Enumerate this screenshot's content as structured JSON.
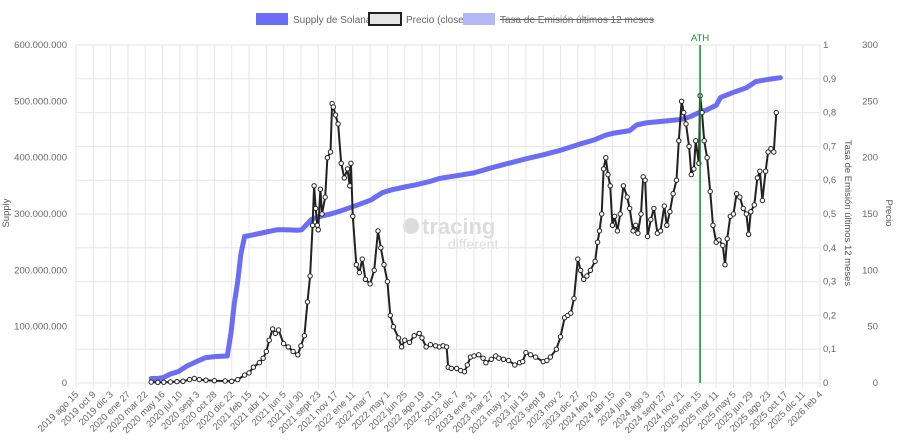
{
  "legend": {
    "supply": "Supply de Solana",
    "precio": "Precio (close)",
    "tasa": "Tasa de Emisión últimos 12 meses"
  },
  "colors": {
    "supply": "#6b6ef5",
    "precio": "#222222",
    "tasa_fill": "#b4b8f7",
    "ath": "#1f8a3a",
    "grid": "#e6e6e6"
  },
  "axes": {
    "left_title": "Supply",
    "right1_title": "Tasa de Emisión últimos 12 meses",
    "right2_title": "Precio"
  },
  "watermark": {
    "line1": "tracing",
    "line2": "different"
  },
  "annotation": {
    "label": "ATH",
    "date": "2025-01-19"
  },
  "chart_data": {
    "type": "line",
    "x_type": "date",
    "xlim": [
      "2019-08-15",
      "2026-02-04"
    ],
    "x_ticks": [
      "2019-08-15",
      "2019-10-09",
      "2019-12-03",
      "2020-01-27",
      "2020-03-22",
      "2020-05-16",
      "2020-07-10",
      "2020-09-03",
      "2020-10-28",
      "2020-12-22",
      "2021-02-15",
      "2021-04-11",
      "2021-06-05",
      "2021-07-30",
      "2021-09-23",
      "2021-11-17",
      "2022-01-11",
      "2022-03-07",
      "2022-05-01",
      "2022-06-25",
      "2022-08-19",
      "2022-10-13",
      "2022-12-07",
      "2023-01-31",
      "2023-03-27",
      "2023-05-21",
      "2023-07-15",
      "2023-09-08",
      "2023-11-02",
      "2023-12-27",
      "2024-02-20",
      "2024-04-15",
      "2024-06-09",
      "2024-08-03",
      "2024-09-27",
      "2024-11-21",
      "2025-01-15",
      "2025-03-11",
      "2025-05-05",
      "2025-06-29",
      "2025-08-23",
      "2025-10-17",
      "2025-12-11",
      "2026-02-04"
    ],
    "x_tick_labels": [
      "2019 ago 15",
      "2019 oct 9",
      "2019 dic 3",
      "2020 ene 27",
      "2020 mar 22",
      "2020 may 16",
      "2020 jul 10",
      "2020 sept 3",
      "2020 oct 28",
      "2020 dic 22",
      "2021 feb 15",
      "2021 abr 11",
      "2021 jun 5",
      "2021 jul 30",
      "2021 sept 23",
      "2021 nov 17",
      "2022 ene 11",
      "2022 mar 7",
      "2022 may 1",
      "2022 jun 25",
      "2022 ago 19",
      "2022 oct 13",
      "2022 dic 7",
      "2023 ene 31",
      "2023 mar 27",
      "2023 may 21",
      "2023 jul 15",
      "2023 sept 8",
      "2023 nov 2",
      "2023 dic 27",
      "2024 feb 20",
      "2024 abr 15",
      "2024 jun 9",
      "2024 ago 3",
      "2024 sept 27",
      "2024 nov 21",
      "2025 ene 15",
      "2025 mar 11",
      "2025 may 5",
      "2025 jun 29",
      "2025 ago 23",
      "2025 oct 17",
      "2025 dic 11",
      "2026 feb 4"
    ],
    "y_left": {
      "min": 0,
      "max": 600000000,
      "ticks": [
        "0",
        "100.000.000",
        "200.000.000",
        "300.000.000",
        "400.000.000",
        "500.000.000",
        "600.000.000"
      ]
    },
    "y_right1": {
      "min": 0,
      "max": 1,
      "ticks": [
        "0",
        "0,1",
        "0,2",
        "0,3",
        "0,4",
        "0,5",
        "0,6",
        "0,7",
        "0,8",
        "0,9",
        "1"
      ]
    },
    "y_right2": {
      "min": 0,
      "max": 300,
      "ticks": [
        "0",
        "50",
        "100",
        "150",
        "200",
        "250",
        "300"
      ]
    },
    "grid": true,
    "legend_position": "top",
    "series": [
      {
        "name": "Supply de Solana",
        "axis": "left",
        "points": [
          [
            "2020-04-10",
            8000000
          ],
          [
            "2020-05-01",
            8000000
          ],
          [
            "2020-05-20",
            10000000
          ],
          [
            "2020-06-10",
            16000000
          ],
          [
            "2020-07-05",
            20000000
          ],
          [
            "2020-08-01",
            30000000
          ],
          [
            "2020-09-01",
            38000000
          ],
          [
            "2020-10-01",
            45000000
          ],
          [
            "2020-11-01",
            47000000
          ],
          [
            "2020-12-08",
            48000000
          ],
          [
            "2020-12-20",
            90000000
          ],
          [
            "2020-12-30",
            140000000
          ],
          [
            "2021-01-10",
            180000000
          ],
          [
            "2021-01-20",
            228000000
          ],
          [
            "2021-02-01",
            260000000
          ],
          [
            "2021-03-01",
            263000000
          ],
          [
            "2021-04-11",
            268000000
          ],
          [
            "2021-05-15",
            272000000
          ],
          [
            "2021-06-10",
            272000000
          ],
          [
            "2021-07-20",
            271000000
          ],
          [
            "2021-08-01",
            272000000
          ],
          [
            "2021-09-01",
            290000000
          ],
          [
            "2021-09-23",
            295000000
          ],
          [
            "2021-11-01",
            300000000
          ],
          [
            "2021-12-01",
            305000000
          ],
          [
            "2022-01-11",
            313000000
          ],
          [
            "2022-02-15",
            320000000
          ],
          [
            "2022-03-10",
            325000000
          ],
          [
            "2022-04-15",
            338000000
          ],
          [
            "2022-05-15",
            343000000
          ],
          [
            "2022-06-25",
            348000000
          ],
          [
            "2022-08-01",
            352000000
          ],
          [
            "2022-09-15",
            358000000
          ],
          [
            "2022-10-13",
            363000000
          ],
          [
            "2022-12-07",
            368000000
          ],
          [
            "2023-01-31",
            373000000
          ],
          [
            "2023-03-27",
            382000000
          ],
          [
            "2023-05-21",
            390000000
          ],
          [
            "2023-07-15",
            398000000
          ],
          [
            "2023-09-08",
            405000000
          ],
          [
            "2023-11-02",
            413000000
          ],
          [
            "2023-12-27",
            423000000
          ],
          [
            "2024-02-20",
            432000000
          ],
          [
            "2024-03-25",
            440000000
          ],
          [
            "2024-04-15",
            443000000
          ],
          [
            "2024-06-09",
            448000000
          ],
          [
            "2024-07-01",
            458000000
          ],
          [
            "2024-08-03",
            462000000
          ],
          [
            "2024-09-27",
            465000000
          ],
          [
            "2024-11-21",
            468000000
          ],
          [
            "2024-12-20",
            473000000
          ],
          [
            "2025-01-15",
            480000000
          ],
          [
            "2025-02-10",
            485000000
          ],
          [
            "2025-03-11",
            493000000
          ],
          [
            "2025-03-25",
            507000000
          ],
          [
            "2025-05-05",
            516000000
          ],
          [
            "2025-06-15",
            524000000
          ],
          [
            "2025-07-15",
            535000000
          ],
          [
            "2025-08-23",
            539000000
          ],
          [
            "2025-10-01",
            542000000
          ]
        ]
      },
      {
        "name": "Precio (close)",
        "axis": "right2",
        "points": [
          [
            "2020-04-10",
            0.8
          ],
          [
            "2020-05-01",
            0.6
          ],
          [
            "2020-05-20",
            0.7
          ],
          [
            "2020-06-10",
            0.9
          ],
          [
            "2020-07-01",
            1.2
          ],
          [
            "2020-07-20",
            1.5
          ],
          [
            "2020-08-10",
            3
          ],
          [
            "2020-08-25",
            4
          ],
          [
            "2020-09-10",
            3
          ],
          [
            "2020-10-01",
            2.5
          ],
          [
            "2020-10-28",
            2
          ],
          [
            "2020-12-01",
            1.8
          ],
          [
            "2020-12-22",
            1.5
          ],
          [
            "2021-01-10",
            3
          ],
          [
            "2021-02-01",
            7
          ],
          [
            "2021-02-15",
            9
          ],
          [
            "2021-03-01",
            14
          ],
          [
            "2021-03-20",
            18
          ],
          [
            "2021-04-01",
            22
          ],
          [
            "2021-04-11",
            28
          ],
          [
            "2021-04-20",
            38
          ],
          [
            "2021-05-01",
            48
          ],
          [
            "2021-05-10",
            44
          ],
          [
            "2021-05-20",
            47
          ],
          [
            "2021-06-05",
            35
          ],
          [
            "2021-06-20",
            32
          ],
          [
            "2021-07-05",
            28
          ],
          [
            "2021-07-20",
            25
          ],
          [
            "2021-07-30",
            33
          ],
          [
            "2021-08-10",
            42
          ],
          [
            "2021-08-20",
            72
          ],
          [
            "2021-08-28",
            95
          ],
          [
            "2021-09-05",
            140
          ],
          [
            "2021-09-10",
            175
          ],
          [
            "2021-09-15",
            155
          ],
          [
            "2021-09-20",
            140
          ],
          [
            "2021-09-23",
            136
          ],
          [
            "2021-09-30",
            172
          ],
          [
            "2021-10-05",
            150
          ],
          [
            "2021-10-15",
            165
          ],
          [
            "2021-10-22",
            200
          ],
          [
            "2021-11-01",
            205
          ],
          [
            "2021-11-06",
            248
          ],
          [
            "2021-11-10",
            245
          ],
          [
            "2021-11-17",
            238
          ],
          [
            "2021-11-25",
            230
          ],
          [
            "2021-12-05",
            195
          ],
          [
            "2021-12-15",
            182
          ],
          [
            "2021-12-25",
            190
          ],
          [
            "2022-01-01",
            175
          ],
          [
            "2022-01-05",
            195
          ],
          [
            "2022-01-11",
            148
          ],
          [
            "2022-01-22",
            105
          ],
          [
            "2022-02-01",
            98
          ],
          [
            "2022-02-10",
            110
          ],
          [
            "2022-02-20",
            92
          ],
          [
            "2022-03-07",
            88
          ],
          [
            "2022-03-20",
            100
          ],
          [
            "2022-04-01",
            135
          ],
          [
            "2022-04-10",
            120
          ],
          [
            "2022-04-20",
            105
          ],
          [
            "2022-05-01",
            90
          ],
          [
            "2022-05-10",
            60
          ],
          [
            "2022-05-20",
            50
          ],
          [
            "2022-06-05",
            40
          ],
          [
            "2022-06-15",
            32
          ],
          [
            "2022-06-25",
            38
          ],
          [
            "2022-07-10",
            36
          ],
          [
            "2022-07-25",
            42
          ],
          [
            "2022-08-10",
            44
          ],
          [
            "2022-08-19",
            40
          ],
          [
            "2022-09-01",
            32
          ],
          [
            "2022-09-15",
            34
          ],
          [
            "2022-10-01",
            33
          ],
          [
            "2022-10-13",
            32
          ],
          [
            "2022-10-25",
            33
          ],
          [
            "2022-11-05",
            32
          ],
          [
            "2022-11-10",
            14
          ],
          [
            "2022-11-20",
            13
          ],
          [
            "2022-12-07",
            13
          ],
          [
            "2022-12-20",
            11
          ],
          [
            "2023-01-01",
            10
          ],
          [
            "2023-01-10",
            16
          ],
          [
            "2023-01-20",
            23
          ],
          [
            "2023-01-31",
            24
          ],
          [
            "2023-02-15",
            25
          ],
          [
            "2023-03-01",
            22
          ],
          [
            "2023-03-10",
            18
          ],
          [
            "2023-03-27",
            21
          ],
          [
            "2023-04-10",
            24
          ],
          [
            "2023-04-20",
            22
          ],
          [
            "2023-05-05",
            21
          ],
          [
            "2023-05-21",
            20
          ],
          [
            "2023-06-10",
            16
          ],
          [
            "2023-06-25",
            18
          ],
          [
            "2023-07-05",
            19
          ],
          [
            "2023-07-15",
            27
          ],
          [
            "2023-07-30",
            25
          ],
          [
            "2023-08-15",
            23
          ],
          [
            "2023-09-08",
            19
          ],
          [
            "2023-09-20",
            20
          ],
          [
            "2023-10-01",
            23
          ],
          [
            "2023-10-20",
            30
          ],
          [
            "2023-11-02",
            41
          ],
          [
            "2023-11-15",
            58
          ],
          [
            "2023-11-25",
            60
          ],
          [
            "2023-12-05",
            62
          ],
          [
            "2023-12-15",
            75
          ],
          [
            "2023-12-27",
            110
          ],
          [
            "2024-01-05",
            100
          ],
          [
            "2024-01-15",
            92
          ],
          [
            "2024-01-25",
            95
          ],
          [
            "2024-02-05",
            100
          ],
          [
            "2024-02-20",
            108
          ],
          [
            "2024-02-28",
            125
          ],
          [
            "2024-03-05",
            135
          ],
          [
            "2024-03-12",
            150
          ],
          [
            "2024-03-18",
            190
          ],
          [
            "2024-03-25",
            200
          ],
          [
            "2024-04-01",
            185
          ],
          [
            "2024-04-08",
            175
          ],
          [
            "2024-04-15",
            140
          ],
          [
            "2024-04-22",
            148
          ],
          [
            "2024-05-01",
            135
          ],
          [
            "2024-05-10",
            150
          ],
          [
            "2024-05-20",
            175
          ],
          [
            "2024-06-01",
            165
          ],
          [
            "2024-06-09",
            155
          ],
          [
            "2024-06-20",
            135
          ],
          [
            "2024-06-28",
            140
          ],
          [
            "2024-07-05",
            133
          ],
          [
            "2024-07-15",
            150
          ],
          [
            "2024-07-22",
            183
          ],
          [
            "2024-07-28",
            180
          ],
          [
            "2024-08-05",
            130
          ],
          [
            "2024-08-15",
            145
          ],
          [
            "2024-08-25",
            155
          ],
          [
            "2024-09-05",
            133
          ],
          [
            "2024-09-15",
            135
          ],
          [
            "2024-09-27",
            157
          ],
          [
            "2024-10-05",
            140
          ],
          [
            "2024-10-15",
            152
          ],
          [
            "2024-10-25",
            168
          ],
          [
            "2024-11-05",
            180
          ],
          [
            "2024-11-12",
            215
          ],
          [
            "2024-11-21",
            250
          ],
          [
            "2024-11-28",
            240
          ],
          [
            "2024-12-05",
            230
          ],
          [
            "2024-12-15",
            210
          ],
          [
            "2024-12-22",
            185
          ],
          [
            "2024-12-30",
            190
          ],
          [
            "2025-01-05",
            215
          ],
          [
            "2025-01-15",
            195
          ],
          [
            "2025-01-19",
            255
          ],
          [
            "2025-01-25",
            240
          ],
          [
            "2025-02-01",
            215
          ],
          [
            "2025-02-10",
            200
          ],
          [
            "2025-02-20",
            170
          ],
          [
            "2025-03-01",
            140
          ],
          [
            "2025-03-11",
            125
          ],
          [
            "2025-03-20",
            127
          ],
          [
            "2025-04-01",
            122
          ],
          [
            "2025-04-08",
            105
          ],
          [
            "2025-04-15",
            128
          ],
          [
            "2025-04-25",
            148
          ],
          [
            "2025-05-05",
            150
          ],
          [
            "2025-05-15",
            168
          ],
          [
            "2025-05-25",
            165
          ],
          [
            "2025-06-05",
            155
          ],
          [
            "2025-06-15",
            150
          ],
          [
            "2025-06-22",
            132
          ],
          [
            "2025-06-29",
            152
          ],
          [
            "2025-07-10",
            158
          ],
          [
            "2025-07-20",
            182
          ],
          [
            "2025-07-28",
            188
          ],
          [
            "2025-08-05",
            162
          ],
          [
            "2025-08-15",
            188
          ],
          [
            "2025-08-23",
            205
          ],
          [
            "2025-09-01",
            208
          ],
          [
            "2025-09-10",
            205
          ],
          [
            "2025-09-18",
            240
          ]
        ]
      }
    ]
  }
}
